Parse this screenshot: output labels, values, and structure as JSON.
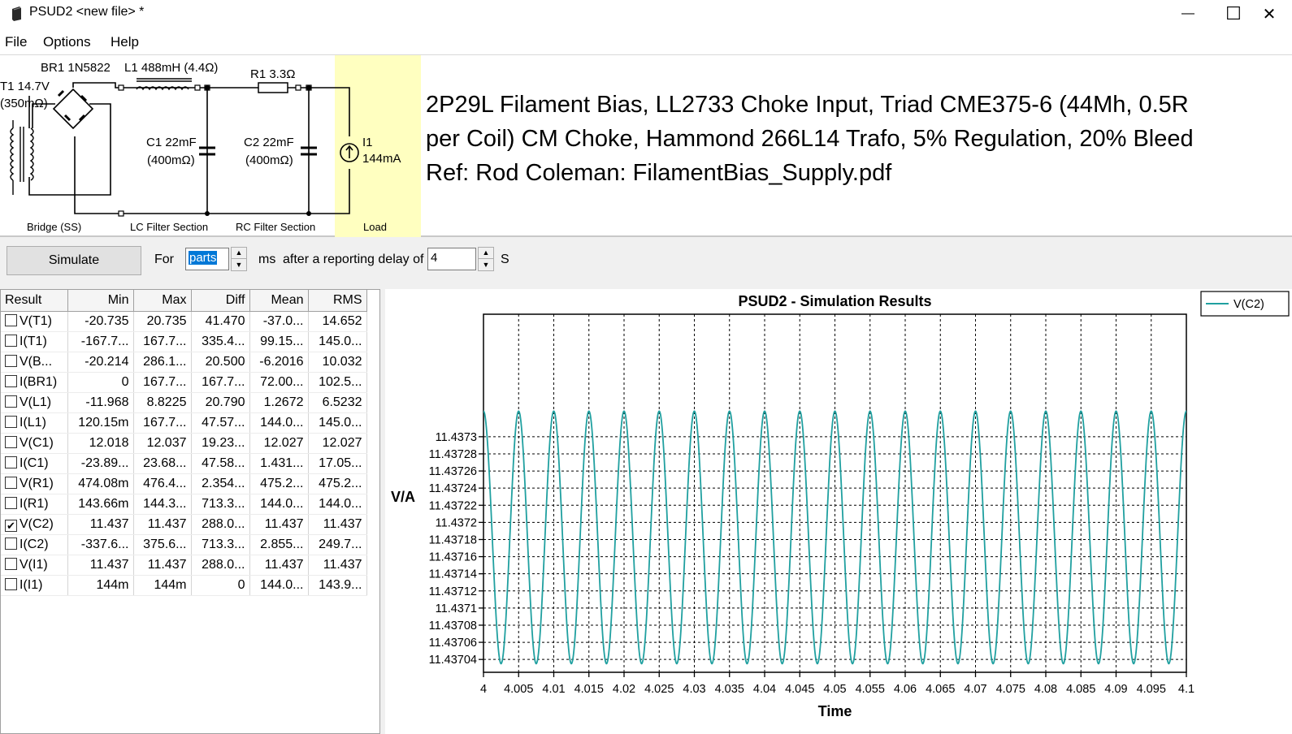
{
  "window": {
    "title": "PSUD2  <new file> *",
    "minimize_glyph": "—",
    "maximize_glyph": "☐",
    "close_glyph": "✕",
    "icon": "psud2-app-icon"
  },
  "menu": {
    "file": "File",
    "options": "Options",
    "help": "Help"
  },
  "circuit": {
    "br1": "BR1 1N5822",
    "l1": "L1 488mH (4.4Ω)",
    "t1_line1": "T1 14.7V",
    "t1_line2": "(350mΩ)",
    "r1": "R1 3.3Ω",
    "c1_line1": "C1 22mF",
    "c1_line2": "(400mΩ)",
    "c2_line1": "C2 22mF",
    "c2_line2": "(400mΩ)",
    "i1_line1": "I1",
    "i1_line2": "144mA",
    "section_bridge": "Bridge (SS)",
    "section_lc": "LC Filter Section",
    "section_rc": "RC Filter Section",
    "section_load": "Load",
    "load_highlight_color": "#ffffc0"
  },
  "description": {
    "line1": "2P29L Filament Bias, LL2733 Choke Input, Triad CME375-6 (44Mh, 0.5R",
    "line2": "per Coil) CM Choke, Hammond 266L14 Trafo, 5% Regulation, 20% Bleed",
    "line3": "Ref: Rod Coleman: FilamentBias_Supply.pdf"
  },
  "controls": {
    "simulate_label": "Simulate",
    "for_label": "For",
    "duration_value": "parts",
    "ms_label": "ms",
    "after_label": "after a reporting delay of",
    "delay_value": "4",
    "s_label": "S"
  },
  "table": {
    "headers": [
      "Result",
      "Min",
      "Max",
      "Diff",
      "Mean",
      "RMS"
    ],
    "rows": [
      {
        "name": "V(T1)",
        "checked": false,
        "min": "-20.735",
        "max": "20.735",
        "diff": "41.470",
        "mean": "-37.0...",
        "rms": "14.652"
      },
      {
        "name": "I(T1)",
        "checked": false,
        "min": "-167.7...",
        "max": "167.7...",
        "diff": "335.4...",
        "mean": "99.15...",
        "rms": "145.0..."
      },
      {
        "name": "V(B...",
        "checked": false,
        "min": "-20.214",
        "max": "286.1...",
        "diff": "20.500",
        "mean": "-6.2016",
        "rms": "10.032"
      },
      {
        "name": "I(BR1)",
        "checked": false,
        "min": "0",
        "max": "167.7...",
        "diff": "167.7...",
        "mean": "72.00...",
        "rms": "102.5..."
      },
      {
        "name": "V(L1)",
        "checked": false,
        "min": "-11.968",
        "max": "8.8225",
        "diff": "20.790",
        "mean": "1.2672",
        "rms": "6.5232"
      },
      {
        "name": "I(L1)",
        "checked": false,
        "min": "120.15m",
        "max": "167.7...",
        "diff": "47.57...",
        "mean": "144.0...",
        "rms": "145.0..."
      },
      {
        "name": "V(C1)",
        "checked": false,
        "min": "12.018",
        "max": "12.037",
        "diff": "19.23...",
        "mean": "12.027",
        "rms": "12.027"
      },
      {
        "name": "I(C1)",
        "checked": false,
        "min": "-23.89...",
        "max": "23.68...",
        "diff": "47.58...",
        "mean": "1.431...",
        "rms": "17.05..."
      },
      {
        "name": "V(R1)",
        "checked": false,
        "min": "474.08m",
        "max": "476.4...",
        "diff": "2.354...",
        "mean": "475.2...",
        "rms": "475.2..."
      },
      {
        "name": "I(R1)",
        "checked": false,
        "min": "143.66m",
        "max": "144.3...",
        "diff": "713.3...",
        "mean": "144.0...",
        "rms": "144.0..."
      },
      {
        "name": "V(C2)",
        "checked": true,
        "min": "11.437",
        "max": "11.437",
        "diff": "288.0...",
        "mean": "11.437",
        "rms": "11.437"
      },
      {
        "name": "I(C2)",
        "checked": false,
        "min": "-337.6...",
        "max": "375.6...",
        "diff": "713.3...",
        "mean": "2.855...",
        "rms": "249.7..."
      },
      {
        "name": "V(I1)",
        "checked": false,
        "min": "11.437",
        "max": "11.437",
        "diff": "288.0...",
        "mean": "11.437",
        "rms": "11.437"
      },
      {
        "name": "I(I1)",
        "checked": false,
        "min": "144m",
        "max": "144m",
        "diff": "0",
        "mean": "144.0...",
        "rms": "143.9..."
      }
    ]
  },
  "chart_data": {
    "type": "line",
    "title": "PSUD2 - Simulation Results",
    "xlabel": "Time",
    "ylabel": "V/A",
    "xlim": [
      4,
      4.1
    ],
    "ylim": [
      11.437025,
      11.437443
    ],
    "x_ticks": [
      "4",
      "4.005",
      "4.01",
      "4.015",
      "4.02",
      "4.025",
      "4.03",
      "4.035",
      "4.04",
      "4.045",
      "4.05",
      "4.055",
      "4.06",
      "4.065",
      "4.07",
      "4.075",
      "4.08",
      "4.085",
      "4.09",
      "4.095",
      "4.1"
    ],
    "y_ticks": [
      11.43704,
      11.43706,
      11.43708,
      11.4371,
      11.43712,
      11.43714,
      11.43716,
      11.43718,
      11.4372,
      11.43722,
      11.43724,
      11.43726,
      11.43728,
      11.4373
    ],
    "y_tick_labels": [
      "11.43704",
      "11.43706",
      "11.43708",
      "11.4371",
      "11.43712",
      "11.43714",
      "11.43716",
      "11.43718",
      "11.4372",
      "11.43722",
      "11.43724",
      "11.43726",
      "11.43728",
      "11.4373"
    ],
    "grid": true,
    "legend_position": "top-right",
    "series": [
      {
        "name": "V(C2)",
        "color": "#20a0a0",
        "x": [
          4,
          4.0025,
          4.005,
          4.0075,
          4.01,
          4.0125,
          4.015,
          4.0175,
          4.02,
          4.0225,
          4.025,
          4.0275,
          4.03,
          4.0325,
          4.035,
          4.0375,
          4.04,
          4.0425,
          4.045,
          4.0475,
          4.05,
          4.0525,
          4.055,
          4.0575,
          4.06,
          4.0625,
          4.065,
          4.0675,
          4.07,
          4.0725,
          4.075,
          4.0775,
          4.08,
          4.0825,
          4.085,
          4.0875,
          4.09,
          4.0925,
          4.095,
          4.0975,
          4.1
        ],
        "y": [
          11.43733,
          11.437035,
          11.43733,
          11.437035,
          11.43733,
          11.437035,
          11.43733,
          11.437035,
          11.43733,
          11.437035,
          11.43733,
          11.437035,
          11.43733,
          11.437035,
          11.43733,
          11.437035,
          11.43733,
          11.437035,
          11.43733,
          11.437035,
          11.43733,
          11.437035,
          11.43733,
          11.437035,
          11.43733,
          11.437035,
          11.43733,
          11.437035,
          11.43733,
          11.437035,
          11.43733,
          11.437035,
          11.43733,
          11.437035,
          11.43733,
          11.437035,
          11.43733,
          11.437035,
          11.43733,
          11.437035,
          11.43733
        ]
      }
    ]
  }
}
